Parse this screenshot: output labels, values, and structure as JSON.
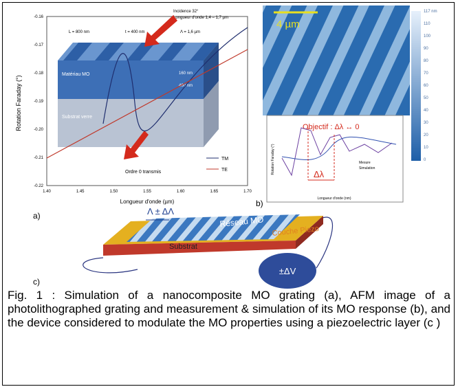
{
  "figure": {
    "panel_a": {
      "label": "a)",
      "y_axis_title": "Rotation Faraday (°)",
      "x_axis_title": "Longueur d'onde (µm)",
      "yticks": [
        "-0.16",
        "-0.17",
        "-0.18",
        "-0.19",
        "-0.20",
        "-0.21",
        "-0.22"
      ],
      "xticks": [
        "1.40",
        "1.45",
        "1.50",
        "1.55",
        "1.60",
        "1.65",
        "1.70"
      ],
      "incidence": "Incidence 32°",
      "wavelength_range": "Longueur d'onde 1,4 – 1,7 µm",
      "dims": [
        "L = 800 nm",
        "t = 400 nm",
        "Λ = 1,6 µm"
      ],
      "layer_mo": "Matériau MO",
      "layer_substrate": "Substrat verre",
      "thickness": [
        "160 nm",
        "400 nm"
      ],
      "order": "Ordre 0 transmis",
      "legend": [
        "TM",
        "TE"
      ]
    },
    "panel_b": {
      "label": "b)",
      "scale_bar": "4 µm",
      "colorbar": [
        "117 nm",
        "110",
        "100",
        "90",
        "80",
        "70",
        "60",
        "50",
        "40",
        "30",
        "20",
        "10",
        "0"
      ],
      "objective": "Objectif : Δλ ↔ 0",
      "delta": "Δλ",
      "legend": [
        "Mesure",
        "Simulation"
      ],
      "y_axis_title": "Rotation Faraday (°)",
      "x_axis_title": "Longueur d'onde (nm)"
    },
    "panel_c": {
      "label": "c)",
      "period": "Λ ± ΔΛ",
      "grating": "Réseau MO",
      "piezo": "Couche Piezo",
      "substrate": "Substrat",
      "voltage": "±ΔV"
    },
    "caption": "Fig. 1 : Simulation of a nanocomposite MO grating (a), AFM image of a photolithographed grating and measurement & simulation of its MO response (b), and the device  considered to modulate the MO properties using a piezoelectric layer (c )"
  }
}
